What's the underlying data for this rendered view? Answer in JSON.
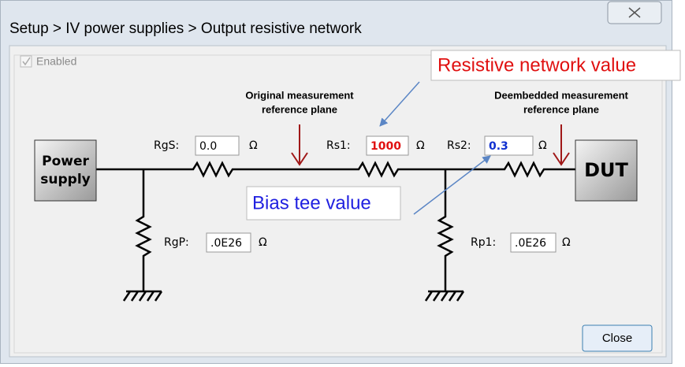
{
  "window": {
    "title": "Setup > IV power supplies > Output resistive network"
  },
  "checkbox": {
    "label": "Enabled"
  },
  "reference_planes": [
    {
      "lines": [
        "Original measurement",
        "reference plane"
      ]
    },
    {
      "lines": [
        "Deembedded measurement",
        "reference plane"
      ]
    }
  ],
  "blocks": {
    "source": [
      "Power",
      "supply"
    ],
    "load": "DUT"
  },
  "fields": [
    {
      "label": "RgS:",
      "value": "0.0",
      "unit": "Ω"
    },
    {
      "label": "Rs1:",
      "value": "1000",
      "unit": "Ω"
    },
    {
      "label": "Rs2:",
      "value": "0.3",
      "unit": "Ω"
    },
    {
      "label": "RgP:",
      "value": ".0E26",
      "unit": "Ω"
    },
    {
      "label": "Rp1:",
      "value": ".0E26",
      "unit": "Ω"
    }
  ],
  "annotations": {
    "resistive": "Resistive network value",
    "bias_tee": "Bias tee value"
  },
  "button": {
    "label": "Close"
  }
}
